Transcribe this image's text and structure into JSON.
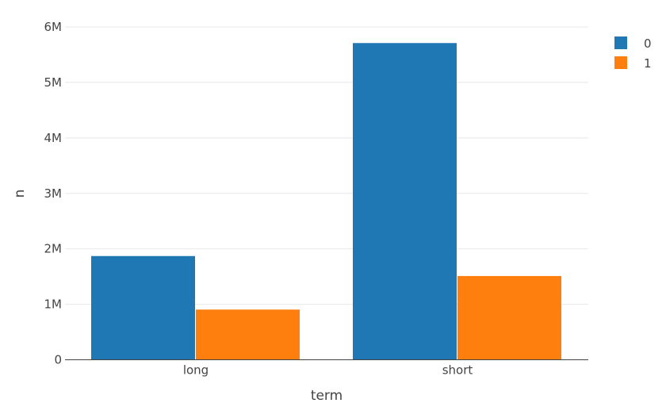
{
  "chart_data": {
    "type": "bar",
    "title": "",
    "xlabel": "term",
    "ylabel": "n",
    "categories": [
      "long",
      "short"
    ],
    "series": [
      {
        "name": "0",
        "color": "#1f77b4",
        "values": [
          1870000,
          5710000
        ]
      },
      {
        "name": "1",
        "color": "#ff7f0e",
        "values": [
          905000,
          1510000
        ]
      }
    ],
    "ylim": [
      0,
      6000000
    ],
    "yticks": [
      0,
      1000000,
      2000000,
      3000000,
      4000000,
      5000000,
      6000000
    ],
    "ytick_labels": [
      "0",
      "1M",
      "2M",
      "3M",
      "4M",
      "5M",
      "6M"
    ],
    "grid": true,
    "legend_position": "top-right"
  }
}
